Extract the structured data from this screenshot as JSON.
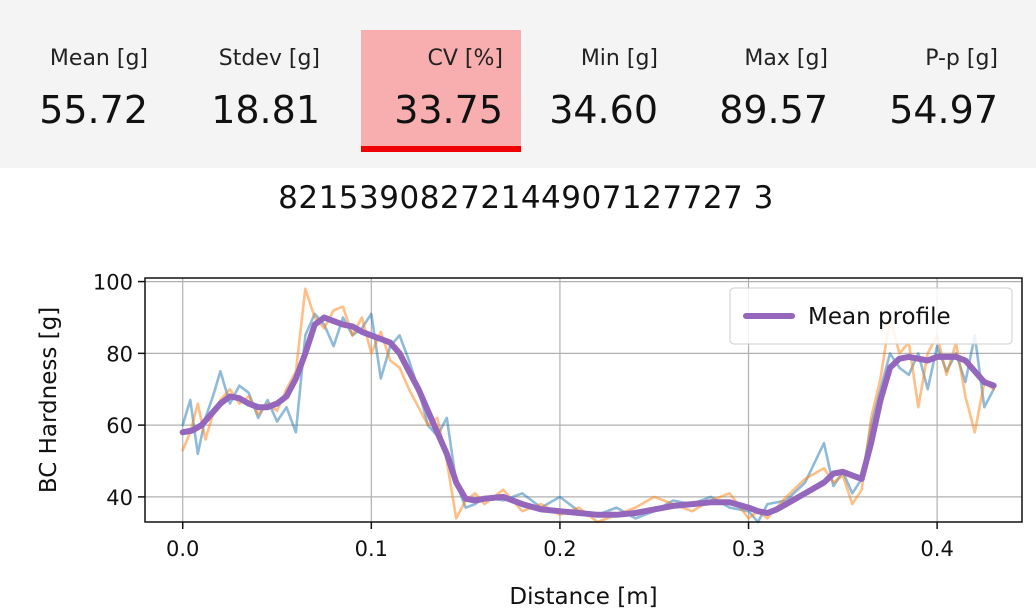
{
  "stats": [
    {
      "label": "Mean [g]",
      "value": "55.72"
    },
    {
      "label": "Stdev [g]",
      "value": "18.81"
    },
    {
      "label": "CV [%]",
      "value": "33.75",
      "highlight": true
    },
    {
      "label": "Min [g]",
      "value": "34.60"
    },
    {
      "label": "Max [g]",
      "value": "89.57"
    },
    {
      "label": "P-p [g]",
      "value": "54.97"
    }
  ],
  "colors": {
    "highlight_fill": "#f8aeae",
    "highlight_bar": "#f00000",
    "mean_profile": "#9467bd",
    "series_blue": "#1f77b4",
    "series_orange": "#ff7f0e"
  },
  "chart_data": {
    "type": "line",
    "title": "82153908272144907127727 3",
    "xlabel": "Distance [m]",
    "ylabel": "BC Hardness [g]",
    "xlim": [
      -0.02,
      0.445
    ],
    "ylim": [
      33,
      101
    ],
    "xticks": [
      "0.0",
      "0.1",
      "0.2",
      "0.3",
      "0.4"
    ],
    "xtick_values": [
      0.0,
      0.1,
      0.2,
      0.3,
      0.4
    ],
    "yticks": [
      "40",
      "60",
      "80",
      "100"
    ],
    "ytick_values": [
      40,
      60,
      80,
      100
    ],
    "grid": true,
    "legend": {
      "position": "top-right",
      "entries": [
        "Mean profile"
      ]
    },
    "series": [
      {
        "color": "#1f77b4",
        "x": [
          0.0,
          0.004,
          0.008,
          0.012,
          0.016,
          0.02,
          0.025,
          0.03,
          0.035,
          0.04,
          0.045,
          0.05,
          0.055,
          0.06,
          0.065,
          0.07,
          0.075,
          0.08,
          0.085,
          0.09,
          0.095,
          0.1,
          0.105,
          0.11,
          0.115,
          0.12,
          0.125,
          0.13,
          0.135,
          0.14,
          0.145,
          0.15,
          0.155,
          0.16,
          0.17,
          0.18,
          0.19,
          0.2,
          0.21,
          0.22,
          0.23,
          0.24,
          0.25,
          0.26,
          0.27,
          0.28,
          0.29,
          0.3,
          0.305,
          0.31,
          0.32,
          0.33,
          0.34,
          0.345,
          0.35,
          0.355,
          0.36,
          0.365,
          0.37,
          0.375,
          0.38,
          0.385,
          0.39,
          0.395,
          0.4,
          0.405,
          0.41,
          0.415,
          0.42,
          0.425,
          0.43
        ],
        "y": [
          60,
          67,
          52,
          62,
          68,
          75,
          66,
          71,
          69,
          62,
          67,
          61,
          65,
          58,
          85,
          91,
          88,
          82,
          90,
          85,
          87,
          91,
          73,
          82,
          85,
          78,
          70,
          60,
          57,
          62,
          44,
          37,
          38,
          40,
          39,
          41,
          37,
          40,
          36,
          35,
          37,
          34,
          36,
          39,
          38,
          40,
          37,
          36,
          33,
          38,
          39,
          44,
          55,
          43,
          47,
          41,
          45,
          60,
          70,
          80,
          76,
          74,
          80,
          70,
          82,
          75,
          80,
          72,
          85,
          65,
          70
        ]
      },
      {
        "color": "#ff7f0e",
        "x": [
          0.0,
          0.004,
          0.008,
          0.012,
          0.016,
          0.02,
          0.025,
          0.03,
          0.035,
          0.04,
          0.045,
          0.05,
          0.055,
          0.06,
          0.065,
          0.07,
          0.075,
          0.08,
          0.085,
          0.09,
          0.095,
          0.1,
          0.105,
          0.11,
          0.115,
          0.12,
          0.125,
          0.13,
          0.135,
          0.14,
          0.145,
          0.15,
          0.155,
          0.16,
          0.17,
          0.18,
          0.19,
          0.2,
          0.21,
          0.22,
          0.23,
          0.24,
          0.25,
          0.26,
          0.27,
          0.28,
          0.29,
          0.3,
          0.305,
          0.31,
          0.32,
          0.33,
          0.34,
          0.345,
          0.35,
          0.355,
          0.36,
          0.365,
          0.37,
          0.375,
          0.38,
          0.385,
          0.39,
          0.395,
          0.4,
          0.405,
          0.41,
          0.415,
          0.42,
          0.425,
          0.43
        ],
        "y": [
          53,
          58,
          66,
          56,
          63,
          67,
          70,
          66,
          68,
          63,
          66,
          64,
          70,
          75,
          98,
          90,
          87,
          92,
          93,
          85,
          90,
          80,
          86,
          78,
          76,
          70,
          65,
          60,
          62,
          50,
          34,
          39,
          41,
          38,
          42,
          36,
          38,
          35,
          37,
          33,
          35,
          37,
          40,
          38,
          36,
          39,
          41,
          34,
          36,
          34,
          40,
          45,
          48,
          44,
          46,
          38,
          42,
          62,
          73,
          90,
          80,
          83,
          65,
          80,
          85,
          74,
          83,
          68,
          58,
          72,
          70
        ]
      },
      {
        "name": "Mean profile",
        "color": "#9467bd",
        "x": [
          0.0,
          0.005,
          0.01,
          0.015,
          0.02,
          0.025,
          0.03,
          0.035,
          0.04,
          0.045,
          0.05,
          0.055,
          0.06,
          0.065,
          0.07,
          0.075,
          0.08,
          0.085,
          0.09,
          0.095,
          0.1,
          0.105,
          0.11,
          0.115,
          0.12,
          0.125,
          0.13,
          0.135,
          0.14,
          0.145,
          0.15,
          0.155,
          0.16,
          0.17,
          0.18,
          0.19,
          0.2,
          0.21,
          0.22,
          0.23,
          0.24,
          0.25,
          0.26,
          0.27,
          0.28,
          0.29,
          0.3,
          0.305,
          0.31,
          0.315,
          0.32,
          0.33,
          0.34,
          0.345,
          0.35,
          0.355,
          0.36,
          0.365,
          0.37,
          0.375,
          0.38,
          0.385,
          0.39,
          0.395,
          0.4,
          0.405,
          0.41,
          0.415,
          0.42,
          0.425,
          0.43
        ],
        "y": [
          58,
          58.5,
          60,
          63,
          66,
          68,
          67.5,
          66,
          65,
          65,
          66,
          68,
          73,
          80,
          88,
          90,
          89,
          88,
          87.5,
          86,
          85,
          84,
          83,
          80,
          75,
          70,
          64,
          58,
          52,
          44,
          39.5,
          39,
          39.5,
          40,
          38,
          36.5,
          36,
          35.5,
          35,
          35,
          35.5,
          36.5,
          37.5,
          38,
          38.5,
          38.5,
          37,
          36,
          35.5,
          36.5,
          38,
          41,
          44,
          46.5,
          47,
          46,
          45,
          55,
          67,
          76,
          78.5,
          79,
          78.5,
          78,
          79,
          79,
          79,
          78,
          75,
          72,
          71
        ]
      }
    ]
  }
}
